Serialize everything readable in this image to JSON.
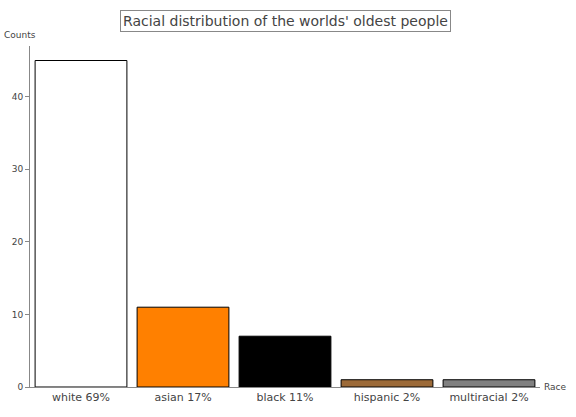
{
  "chart_data": {
    "type": "bar",
    "title": "Racial distribution of the worlds' oldest people",
    "x_label": "Race",
    "y_label": "Counts",
    "categories": [
      "white 69%",
      "asian 17%",
      "black 11%",
      "hispanic 2%",
      "multiracial 2%"
    ],
    "values": [
      45,
      11,
      7,
      1,
      1
    ],
    "colors": [
      "#ffffff",
      "#ff8000",
      "#000000",
      "#9c6a38",
      "#808080"
    ],
    "ylim": [
      0,
      47
    ],
    "yticks": [
      0,
      10,
      20,
      30,
      40
    ],
    "grid": false
  }
}
